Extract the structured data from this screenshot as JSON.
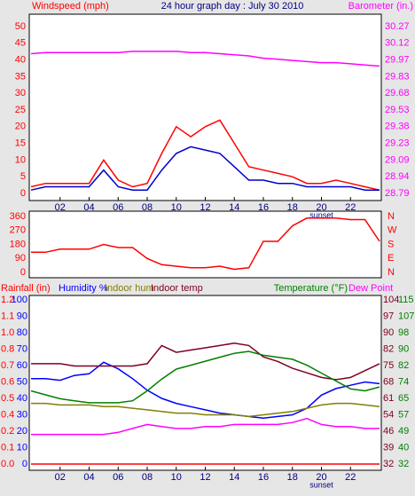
{
  "chart_data": [
    {
      "type": "line",
      "title": "24 hour graph day : July 30 2010",
      "ylabel": "Windspeed (mph)",
      "y2label": "Barometer (in.)",
      "x": [
        0,
        1,
        2,
        3,
        4,
        5,
        6,
        7,
        8,
        9,
        10,
        11,
        12,
        13,
        14,
        15,
        16,
        17,
        18,
        19,
        20,
        21,
        22,
        23,
        24
      ],
      "xlim": [
        0,
        24
      ],
      "xticks": [
        {
          "value": 2,
          "label": "02"
        },
        {
          "value": 4,
          "label": "04"
        },
        {
          "value": 6,
          "label": "06"
        },
        {
          "value": 8,
          "label": "08"
        },
        {
          "value": 10,
          "label": "10"
        },
        {
          "value": 12,
          "label": "12"
        },
        {
          "value": 14,
          "label": "14"
        },
        {
          "value": 16,
          "label": "16"
        },
        {
          "value": 18,
          "label": "18"
        },
        {
          "value": 20,
          "label": "20"
        },
        {
          "value": 22,
          "label": "22"
        }
      ],
      "annotation": {
        "text": "sunset",
        "x": 20
      },
      "ylim": [
        0,
        50
      ],
      "yticks": [
        0,
        5,
        10,
        15,
        20,
        25,
        30,
        35,
        40,
        45,
        50
      ],
      "y2lim": [
        28.79,
        30.27
      ],
      "y2ticks": [
        {
          "value": 28.79,
          "label": "28.79"
        },
        {
          "value": 28.938,
          "label": "28.94"
        },
        {
          "value": 29.086,
          "label": "29.09"
        },
        {
          "value": 29.234,
          "label": "29.23"
        },
        {
          "value": 29.382,
          "label": "29.38"
        },
        {
          "value": 29.53,
          "label": "29.53"
        },
        {
          "value": 29.678,
          "label": "29.68"
        },
        {
          "value": 29.826,
          "label": "29.83"
        },
        {
          "value": 29.974,
          "label": "29.97"
        },
        {
          "value": 30.122,
          "label": "30.12"
        },
        {
          "value": 30.27,
          "label": "30.27"
        }
      ],
      "axis_colors": {
        "y": "#ff0000",
        "y2": "#ff00ff"
      },
      "series": [
        {
          "color": "#ff0000",
          "axis": "y",
          "values": [
            2,
            3,
            3,
            3,
            3,
            10,
            4,
            2,
            3,
            12,
            20,
            17,
            20,
            22,
            15,
            8,
            7,
            6,
            5,
            3,
            3,
            4,
            3,
            2,
            1
          ]
        },
        {
          "color": "#0000cc",
          "axis": "y",
          "values": [
            1,
            2,
            2,
            2,
            2,
            7,
            2,
            1,
            1,
            7,
            12,
            14,
            13,
            12,
            8,
            4,
            4,
            3,
            3,
            2,
            2,
            2,
            2,
            1,
            1
          ]
        },
        {
          "color": "#ff00ff",
          "axis": "y2",
          "values": [
            30.03,
            30.04,
            30.04,
            30.04,
            30.04,
            30.04,
            30.04,
            30.05,
            30.05,
            30.05,
            30.05,
            30.04,
            30.04,
            30.03,
            30.02,
            30.01,
            29.99,
            29.98,
            29.97,
            29.96,
            29.95,
            29.95,
            29.94,
            29.93,
            29.92
          ]
        }
      ]
    },
    {
      "type": "line",
      "x": [
        0,
        1,
        2,
        3,
        4,
        5,
        6,
        7,
        8,
        9,
        10,
        11,
        12,
        13,
        14,
        15,
        16,
        17,
        18,
        19,
        20,
        21,
        22,
        23,
        24
      ],
      "xlim": [
        0,
        24
      ],
      "ylim": [
        0,
        360
      ],
      "yticks": [
        0,
        90,
        180,
        270,
        360
      ],
      "y2lim": [
        0,
        360
      ],
      "y2ticks": [
        {
          "value": 360,
          "label": "N"
        },
        {
          "value": 270,
          "label": "W"
        },
        {
          "value": 180,
          "label": "S"
        },
        {
          "value": 90,
          "label": "E"
        },
        {
          "value": 0,
          "label": "N"
        }
      ],
      "axis_colors": {
        "y": "#ff0000",
        "y2": "#ff0000"
      },
      "series": [
        {
          "color": "#ff0000",
          "axis": "y",
          "values": [
            130,
            130,
            150,
            150,
            150,
            180,
            160,
            160,
            90,
            50,
            40,
            30,
            30,
            40,
            20,
            30,
            200,
            200,
            300,
            350,
            350,
            350,
            340,
            340,
            200
          ]
        }
      ]
    },
    {
      "type": "line",
      "x": [
        0,
        1,
        2,
        3,
        4,
        5,
        6,
        7,
        8,
        9,
        10,
        11,
        12,
        13,
        14,
        15,
        16,
        17,
        18,
        19,
        20,
        21,
        22,
        23,
        24
      ],
      "xlim": [
        0,
        24
      ],
      "xticks": [
        {
          "value": 2,
          "label": "02"
        },
        {
          "value": 4,
          "label": "04"
        },
        {
          "value": 6,
          "label": "06"
        },
        {
          "value": 8,
          "label": "08"
        },
        {
          "value": 10,
          "label": "10"
        },
        {
          "value": 12,
          "label": "12"
        },
        {
          "value": 14,
          "label": "14"
        },
        {
          "value": 16,
          "label": "16"
        },
        {
          "value": 18,
          "label": "18"
        },
        {
          "value": 20,
          "label": "20"
        },
        {
          "value": 22,
          "label": "22"
        }
      ],
      "annotation": {
        "text": "sunset",
        "x": 20
      },
      "ylim": [
        0,
        1.2
      ],
      "yticks": [
        {
          "value": 0,
          "label": "0.0"
        },
        {
          "value": 0.12,
          "label": "0.1"
        },
        {
          "value": 0.24,
          "label": "0.2"
        },
        {
          "value": 0.36,
          "label": "0.4"
        },
        {
          "value": 0.48,
          "label": "0.5"
        },
        {
          "value": 0.6,
          "label": "0.6"
        },
        {
          "value": 0.72,
          "label": "0.7"
        },
        {
          "value": 0.84,
          "label": "0.8"
        },
        {
          "value": 0.96,
          "label": "1.0"
        },
        {
          "value": 1.08,
          "label": "1.1"
        },
        {
          "value": 1.2,
          "label": "1.2"
        }
      ],
      "y2lim": [
        0,
        100
      ],
      "y2ticks": [
        0,
        10,
        20,
        30,
        40,
        50,
        60,
        70,
        80,
        90,
        100
      ],
      "y3lim": [
        32,
        104
      ],
      "y3ticks": [
        32,
        {
          "value": 39.2,
          "label": "39"
        },
        {
          "value": 46.4,
          "label": "46"
        },
        {
          "value": 53.6,
          "label": "54"
        },
        {
          "value": 60.8,
          "label": "61"
        },
        68,
        {
          "value": 75.2,
          "label": "75"
        },
        {
          "value": 82.4,
          "label": "82"
        },
        {
          "value": 89.6,
          "label": "90"
        },
        {
          "value": 96.8,
          "label": "97"
        },
        104
      ],
      "y4lim": [
        32,
        115
      ],
      "y4ticks": [
        32,
        {
          "value": 40.3,
          "label": "40"
        },
        {
          "value": 48.6,
          "label": "49"
        },
        {
          "value": 56.9,
          "label": "57"
        },
        {
          "value": 65.2,
          "label": "65"
        },
        {
          "value": 73.5,
          "label": "74"
        },
        {
          "value": 81.8,
          "label": "82"
        },
        {
          "value": 90.1,
          "label": "90"
        },
        {
          "value": 98.4,
          "label": "98"
        },
        {
          "value": 106.7,
          "label": "107"
        },
        115
      ],
      "axis_colors": {
        "y": "#ff0000",
        "y2": "#0000ff",
        "y3": "#800020",
        "y4": "#008000"
      },
      "series": [
        {
          "name": "Rainfall (in)",
          "color": "#ff0000",
          "axis": "y",
          "values": [
            0,
            0,
            0,
            0,
            0,
            0,
            0,
            0,
            0,
            0,
            0,
            0,
            0,
            0,
            0,
            0,
            0,
            0,
            0,
            0,
            0,
            0,
            0,
            0,
            0
          ]
        },
        {
          "name": "Humidity %",
          "color": "#0000ff",
          "axis": "y2",
          "values": [
            52,
            52,
            51,
            54,
            55,
            62,
            58,
            52,
            45,
            40,
            37,
            35,
            33,
            31,
            30,
            29,
            28,
            29,
            30,
            34,
            42,
            46,
            48,
            50,
            49
          ]
        },
        {
          "name": "Indoor hum",
          "color": "#808000",
          "axis": "y2",
          "values": [
            37,
            37,
            36,
            36,
            36,
            35,
            35,
            34,
            33,
            32,
            31,
            31,
            30,
            30,
            30,
            29,
            30,
            31,
            32,
            34,
            36,
            37,
            37,
            36,
            35
          ]
        },
        {
          "name": "Indoor temp",
          "color": "#800020",
          "axis": "y3",
          "values": [
            76,
            76,
            76,
            75,
            75,
            75,
            75,
            75,
            76,
            84,
            81,
            82,
            83,
            84,
            85,
            84,
            79,
            77,
            74,
            72,
            70,
            69,
            70,
            73,
            76
          ]
        },
        {
          "name": "Temperature (°F)",
          "color": "#008000",
          "axis": "y4",
          "values": [
            69,
            67,
            65,
            64,
            63,
            63,
            63,
            64,
            69,
            75,
            80,
            82,
            84,
            86,
            88,
            89,
            87,
            86,
            85,
            82,
            78,
            74,
            70,
            69,
            71
          ]
        },
        {
          "name": "Dew Point",
          "color": "#ff00ff",
          "axis": "y4",
          "values": [
            47,
            47,
            47,
            47,
            47,
            47,
            48,
            50,
            52,
            51,
            50,
            50,
            51,
            51,
            52,
            52,
            52,
            52,
            53,
            55,
            52,
            51,
            51,
            50,
            50
          ]
        }
      ]
    }
  ]
}
